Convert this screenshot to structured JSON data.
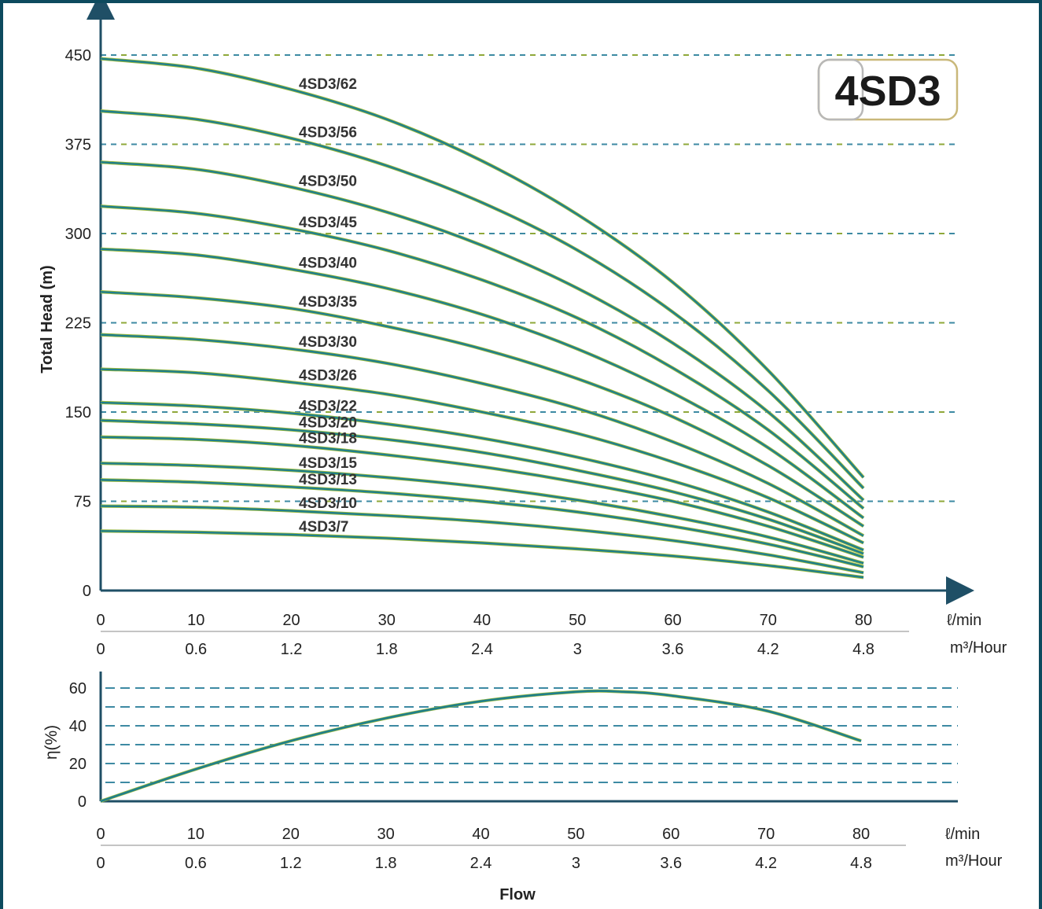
{
  "chart_data": [
    {
      "type": "line",
      "title": "4SD3",
      "ylabel": "Total Head (m)",
      "xlabel": "",
      "x_units": "ℓ/min",
      "x2_units": "m³/Hour",
      "xlim": [
        0,
        80
      ],
      "ylim": [
        0,
        450
      ],
      "x_ticks": [
        "0",
        "10",
        "20",
        "30",
        "40",
        "50",
        "60",
        "70",
        "80"
      ],
      "x2_ticks": [
        "0",
        "0.6",
        "1.2",
        "1.8",
        "2.4",
        "3",
        "3.6",
        "4.2",
        "4.8"
      ],
      "y_ticks": [
        "0",
        "75",
        "150",
        "225",
        "300",
        "375",
        "450"
      ],
      "grid": "horizontal dashed",
      "x": [
        0,
        10,
        20,
        30,
        40,
        50,
        60,
        70,
        80
      ],
      "series": [
        {
          "name": "4SD3/62",
          "values": [
            447,
            439,
            421,
            396,
            361,
            316,
            259,
            185,
            95
          ]
        },
        {
          "name": "4SD3/56",
          "values": [
            403,
            396,
            380,
            357,
            326,
            286,
            234,
            168,
            86
          ]
        },
        {
          "name": "4SD3/50",
          "values": [
            360,
            354,
            339,
            318,
            290,
            254,
            208,
            150,
            76
          ]
        },
        {
          "name": "4SD3/45",
          "values": [
            323,
            317,
            304,
            286,
            261,
            229,
            187,
            135,
            69
          ]
        },
        {
          "name": "4SD3/40",
          "values": [
            287,
            282,
            270,
            254,
            232,
            203,
            166,
            120,
            61
          ]
        },
        {
          "name": "4SD3/35",
          "values": [
            251,
            246,
            237,
            222,
            203,
            178,
            146,
            105,
            54
          ]
        },
        {
          "name": "4SD3/30",
          "values": [
            215,
            211,
            203,
            191,
            174,
            153,
            125,
            90,
            46
          ]
        },
        {
          "name": "4SD3/26",
          "values": [
            186,
            183,
            175,
            165,
            150,
            132,
            108,
            78,
            40
          ]
        },
        {
          "name": "4SD3/22",
          "values": [
            158,
            155,
            149,
            140,
            128,
            112,
            92,
            66,
            34
          ]
        },
        {
          "name": "4SD3/20",
          "values": [
            143,
            140,
            135,
            127,
            116,
            101,
            83,
            60,
            31
          ]
        },
        {
          "name": "4SD3/18",
          "values": [
            129,
            127,
            122,
            114,
            104,
            91,
            75,
            54,
            28
          ]
        },
        {
          "name": "4SD3/15",
          "values": [
            107,
            105,
            101,
            95,
            87,
            76,
            62,
            45,
            23
          ]
        },
        {
          "name": "4SD3/13",
          "values": [
            93,
            91,
            87,
            82,
            75,
            66,
            54,
            39,
            20
          ]
        },
        {
          "name": "4SD3/10",
          "values": [
            71,
            70,
            67,
            63,
            58,
            51,
            42,
            30,
            15
          ]
        },
        {
          "name": "4SD3/7",
          "values": [
            50,
            49,
            47,
            44,
            40,
            35,
            29,
            21,
            11
          ]
        }
      ]
    },
    {
      "type": "line",
      "ylabel": "η(%)",
      "xlabel": "Flow",
      "x_units": "ℓ/min",
      "x2_units": "m³/Hour",
      "xlim": [
        0,
        80
      ],
      "ylim": [
        0,
        60
      ],
      "x_ticks": [
        "0",
        "10",
        "20",
        "30",
        "40",
        "50",
        "60",
        "70",
        "80"
      ],
      "x2_ticks": [
        "0",
        "0.6",
        "1.2",
        "1.8",
        "2.4",
        "3",
        "3.6",
        "4.2",
        "4.8"
      ],
      "y_ticks": [
        "0",
        "20",
        "40",
        "60"
      ],
      "grid": "horizontal dashed",
      "x": [
        0,
        10,
        20,
        30,
        40,
        50,
        55,
        60,
        70,
        80
      ],
      "series": [
        {
          "values": [
            0,
            17,
            32,
            44,
            53,
            58,
            58,
            56,
            48,
            32
          ]
        }
      ]
    }
  ],
  "colors": {
    "border": "#0d4a5e",
    "curve": "#1f7f8c",
    "curve_edge": "#9bb93a",
    "grid_blue": "#3d8aa3",
    "grid_green": "#8fa83a",
    "axis": "#1f4f66"
  }
}
